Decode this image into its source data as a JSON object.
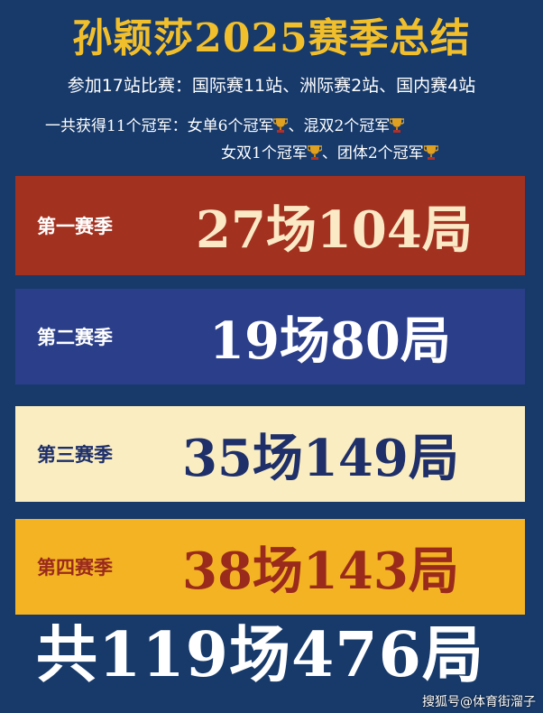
{
  "header": {
    "title": "孙颖莎2025赛季总结",
    "events_line": "参加17站比赛：国际赛11站、洲际赛2站、国内赛4站",
    "titles_line1": "一共获得11个冠军：女单6个冠军",
    "titles_line1b": "、混双2个冠军",
    "titles_line2": "女双1个冠军",
    "titles_line2b": "、团体2个冠军",
    "icon": "trophy-icon"
  },
  "seasons": [
    {
      "label": "第一赛季",
      "value": "27场104局",
      "bg": "#a3311f"
    },
    {
      "label": "第二赛季",
      "value": "19场80局",
      "bg": "#2b3e8a"
    },
    {
      "label": "第三赛季",
      "value": "35场149局",
      "bg": "#f9edc1"
    },
    {
      "label": "第四赛季",
      "value": "38场143局",
      "bg": "#f3b323"
    }
  ],
  "total": "共119场476局",
  "watermark": "搜狐号@体育街溜子"
}
